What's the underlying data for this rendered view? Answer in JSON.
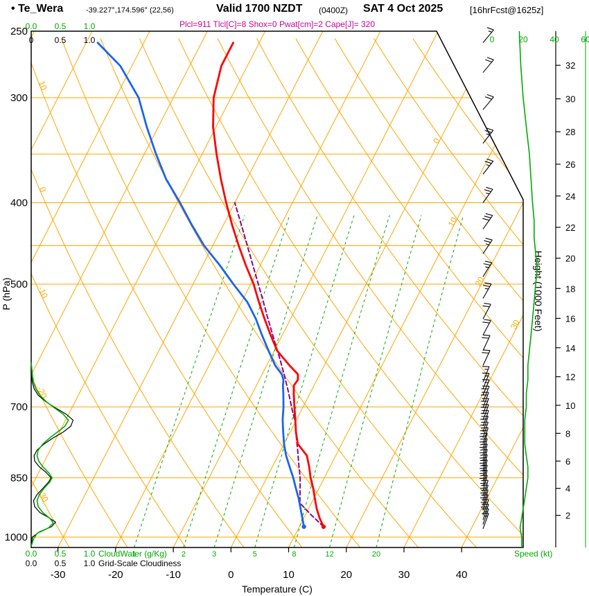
{
  "header": {
    "bullet": "•",
    "station": "Te_Wera",
    "coords": "-39.227°,174.596° (22,56)",
    "valid_label": "Valid 1700 NZDT",
    "valid_z": "(0400Z)",
    "valid_date": "SAT 4 Oct 2025",
    "fcst_tag": "[16hrFcst@1625z]",
    "indices_line": "Plcl=911 Tlcl[C]=8 Shox=0 Pwat[cm]=2 Cape[J]= 320"
  },
  "axes": {
    "pressure_label": "P (hPa)",
    "pressure_ticks": [
      250,
      300,
      400,
      500,
      700,
      850,
      1000
    ],
    "temp_label": "Temperature (C)",
    "temp_ticks": [
      -30,
      -20,
      -10,
      0,
      10,
      20,
      30,
      40
    ],
    "height_label": "Height (1000 Feet)",
    "height_ticks": [
      2,
      4,
      6,
      8,
      10,
      12,
      14,
      16,
      18,
      20,
      22,
      24,
      26,
      28,
      30,
      32
    ],
    "speed_label": "Speed (kt)",
    "speed_ticks": [
      0,
      20,
      40,
      60
    ],
    "cloudwater_label": "CloudWater (g/Kg)",
    "cloudiness_label": "Grid-Scale Cloudiness",
    "top_scale_green": [
      "0.0",
      "0.5",
      "1.0"
    ],
    "top_scale_black": [
      "0",
      "0.5",
      "1.0"
    ],
    "bottom_scale_green": [
      "0.0",
      "0.5",
      "1.0"
    ],
    "bottom_scale_black": [
      "0.0",
      "0.5",
      "1.0"
    ]
  },
  "grid": {
    "isobars": [
      300,
      350,
      400,
      450,
      500,
      700,
      850,
      1000
    ],
    "isotherm_step": 10,
    "isotherm_labels": [
      0,
      10,
      20,
      30
    ],
    "adiabat_labels": [
      10,
      0,
      -10,
      -20,
      -30
    ],
    "mixing_ratios": [
      1,
      2,
      3,
      5,
      8,
      12,
      20
    ]
  },
  "colors": {
    "grid_orange": "#ffa500",
    "green": "#00aa00",
    "temperature_red": "#ff0000",
    "dewpoint_blue": "#1a64f0",
    "parcel_purple": "#8b008b",
    "indices_magenta": "#cc0099",
    "black": "#000000"
  },
  "chart_data": {
    "type": "line",
    "subtype": "skew-t log-p sounding",
    "title": "Te_Wera Valid 1700 NZDT (0400Z) SAT 4 Oct 2025 [16hrFcst@1625z]",
    "xlabel": "Temperature (C)",
    "ylabel": "P (hPa)",
    "xlim": [
      -40,
      40
    ],
    "ylim": [
      1029,
      250
    ],
    "temperature_profile": [
      [
        972,
        14.2
      ],
      [
        950,
        12.8
      ],
      [
        925,
        11.4
      ],
      [
        900,
        10.2
      ],
      [
        875,
        9.0
      ],
      [
        850,
        7.6
      ],
      [
        825,
        6.4
      ],
      [
        800,
        5.0
      ],
      [
        775,
        2.4
      ],
      [
        750,
        1.0
      ],
      [
        725,
        -0.2
      ],
      [
        700,
        -1.5
      ],
      [
        675,
        -2.8
      ],
      [
        660,
        -3.5
      ],
      [
        650,
        -3.3
      ],
      [
        640,
        -3.8
      ],
      [
        625,
        -6.0
      ],
      [
        600,
        -9.5
      ],
      [
        575,
        -12.0
      ],
      [
        550,
        -14.5
      ],
      [
        525,
        -17.0
      ],
      [
        500,
        -19.5
      ],
      [
        475,
        -22.5
      ],
      [
        450,
        -25.5
      ],
      [
        425,
        -28.5
      ],
      [
        400,
        -31.5
      ],
      [
        375,
        -34.5
      ],
      [
        350,
        -37.5
      ],
      [
        325,
        -40.5
      ],
      [
        300,
        -43.0
      ],
      [
        275,
        -44.5
      ],
      [
        258,
        -44.5
      ]
    ],
    "dewpoint_profile": [
      [
        972,
        10.8
      ],
      [
        950,
        9.8
      ],
      [
        925,
        8.6
      ],
      [
        900,
        7.4
      ],
      [
        875,
        6.0
      ],
      [
        850,
        4.6
      ],
      [
        825,
        3.0
      ],
      [
        800,
        1.4
      ],
      [
        775,
        0.0
      ],
      [
        750,
        -1.2
      ],
      [
        725,
        -2.4
      ],
      [
        700,
        -3.4
      ],
      [
        675,
        -4.6
      ],
      [
        660,
        -5.4
      ],
      [
        650,
        -5.8
      ],
      [
        640,
        -6.6
      ],
      [
        625,
        -8.5
      ],
      [
        600,
        -11.0
      ],
      [
        575,
        -13.5
      ],
      [
        550,
        -16.0
      ],
      [
        525,
        -19.0
      ],
      [
        500,
        -23.0
      ],
      [
        475,
        -27.0
      ],
      [
        450,
        -31.5
      ],
      [
        425,
        -35.5
      ],
      [
        400,
        -39.5
      ],
      [
        375,
        -44.0
      ],
      [
        350,
        -48.0
      ],
      [
        325,
        -52.0
      ],
      [
        300,
        -56.0
      ],
      [
        275,
        -62.0
      ],
      [
        258,
        -68.0
      ]
    ],
    "parcel_path": [
      [
        972,
        14.2
      ],
      [
        940,
        10.9
      ],
      [
        911,
        8.0
      ],
      [
        880,
        6.9
      ],
      [
        850,
        5.8
      ],
      [
        820,
        4.4
      ],
      [
        790,
        3.0
      ],
      [
        760,
        1.5
      ],
      [
        730,
        0.0
      ],
      [
        700,
        -2.0
      ],
      [
        670,
        -4.0
      ],
      [
        640,
        -6.2
      ],
      [
        610,
        -8.6
      ],
      [
        580,
        -11.2
      ],
      [
        550,
        -13.9
      ],
      [
        520,
        -16.7
      ],
      [
        490,
        -19.7
      ],
      [
        460,
        -22.9
      ],
      [
        430,
        -26.3
      ],
      [
        400,
        -30.0
      ]
    ],
    "wind_barbs": [
      [
        978,
        15,
        20
      ],
      [
        966,
        15,
        20
      ],
      [
        954,
        18,
        20
      ],
      [
        942,
        18,
        20
      ],
      [
        930,
        20,
        18
      ],
      [
        918,
        20,
        18
      ],
      [
        906,
        20,
        18
      ],
      [
        894,
        22,
        18
      ],
      [
        882,
        22,
        15
      ],
      [
        870,
        22,
        15
      ],
      [
        858,
        25,
        15
      ],
      [
        846,
        25,
        15
      ],
      [
        834,
        25,
        15
      ],
      [
        822,
        22,
        15
      ],
      [
        810,
        22,
        15
      ],
      [
        798,
        22,
        15
      ],
      [
        786,
        20,
        15
      ],
      [
        774,
        20,
        18
      ],
      [
        762,
        20,
        18
      ],
      [
        750,
        20,
        18
      ],
      [
        738,
        20,
        20
      ],
      [
        726,
        18,
        20
      ],
      [
        714,
        18,
        20
      ],
      [
        702,
        18,
        20
      ],
      [
        690,
        18,
        22
      ],
      [
        678,
        15,
        22
      ],
      [
        666,
        15,
        22
      ],
      [
        654,
        15,
        22
      ],
      [
        625,
        18,
        25
      ],
      [
        600,
        20,
        25
      ],
      [
        575,
        20,
        28
      ],
      [
        550,
        22,
        28
      ],
      [
        520,
        24,
        30
      ],
      [
        490,
        25,
        32
      ],
      [
        460,
        27,
        34
      ],
      [
        430,
        28,
        35
      ],
      [
        400,
        27,
        36
      ],
      [
        370,
        25,
        38
      ],
      [
        340,
        24,
        38
      ],
      [
        310,
        21,
        40
      ],
      [
        280,
        19,
        40
      ],
      [
        258,
        17,
        40
      ]
    ],
    "wind_speed_profile": [
      [
        1029,
        19
      ],
      [
        1000,
        19
      ],
      [
        975,
        18
      ],
      [
        950,
        19
      ],
      [
        925,
        20
      ],
      [
        900,
        21
      ],
      [
        875,
        22
      ],
      [
        850,
        23
      ],
      [
        825,
        23
      ],
      [
        800,
        22
      ],
      [
        775,
        21
      ],
      [
        750,
        21
      ],
      [
        725,
        21
      ],
      [
        700,
        22
      ],
      [
        675,
        22
      ],
      [
        650,
        23
      ],
      [
        625,
        23
      ],
      [
        600,
        24
      ],
      [
        575,
        25
      ],
      [
        550,
        26
      ],
      [
        525,
        27
      ],
      [
        500,
        28
      ],
      [
        480,
        29
      ],
      [
        460,
        28
      ],
      [
        440,
        27
      ],
      [
        420,
        27
      ],
      [
        400,
        26
      ],
      [
        375,
        25
      ],
      [
        350,
        24
      ],
      [
        325,
        22
      ],
      [
        300,
        20
      ],
      [
        275,
        18.5
      ],
      [
        250,
        17.5
      ]
    ],
    "cloud_water": [
      [
        1025,
        0.0
      ],
      [
        1005,
        0.04
      ],
      [
        990,
        0.1
      ],
      [
        975,
        0.3
      ],
      [
        962,
        0.38
      ],
      [
        950,
        0.32
      ],
      [
        935,
        0.2
      ],
      [
        920,
        0.12
      ],
      [
        905,
        0.1
      ],
      [
        890,
        0.14
      ],
      [
        875,
        0.22
      ],
      [
        860,
        0.32
      ],
      [
        850,
        0.36
      ],
      [
        838,
        0.3
      ],
      [
        825,
        0.2
      ],
      [
        812,
        0.13
      ],
      [
        800,
        0.1
      ],
      [
        788,
        0.12
      ],
      [
        775,
        0.2
      ],
      [
        762,
        0.32
      ],
      [
        750,
        0.45
      ],
      [
        738,
        0.58
      ],
      [
        726,
        0.64
      ],
      [
        714,
        0.55
      ],
      [
        702,
        0.4
      ],
      [
        690,
        0.26
      ],
      [
        678,
        0.15
      ],
      [
        666,
        0.08
      ],
      [
        654,
        0.04
      ],
      [
        640,
        0.02
      ],
      [
        620,
        0.0
      ]
    ],
    "cloudiness": [
      [
        1025,
        0.0
      ],
      [
        1000,
        0.02
      ],
      [
        985,
        0.15
      ],
      [
        972,
        0.35
      ],
      [
        960,
        0.42
      ],
      [
        948,
        0.3
      ],
      [
        935,
        0.15
      ],
      [
        920,
        0.06
      ],
      [
        905,
        0.04
      ],
      [
        890,
        0.1
      ],
      [
        875,
        0.2
      ],
      [
        860,
        0.3
      ],
      [
        850,
        0.34
      ],
      [
        838,
        0.26
      ],
      [
        825,
        0.14
      ],
      [
        812,
        0.06
      ],
      [
        800,
        0.05
      ],
      [
        788,
        0.1
      ],
      [
        775,
        0.22
      ],
      [
        762,
        0.38
      ],
      [
        750,
        0.55
      ],
      [
        738,
        0.68
      ],
      [
        726,
        0.72
      ],
      [
        714,
        0.6
      ],
      [
        702,
        0.42
      ],
      [
        690,
        0.25
      ],
      [
        678,
        0.12
      ],
      [
        666,
        0.05
      ],
      [
        654,
        0.02
      ],
      [
        640,
        0.0
      ],
      [
        620,
        0.0
      ]
    ]
  }
}
